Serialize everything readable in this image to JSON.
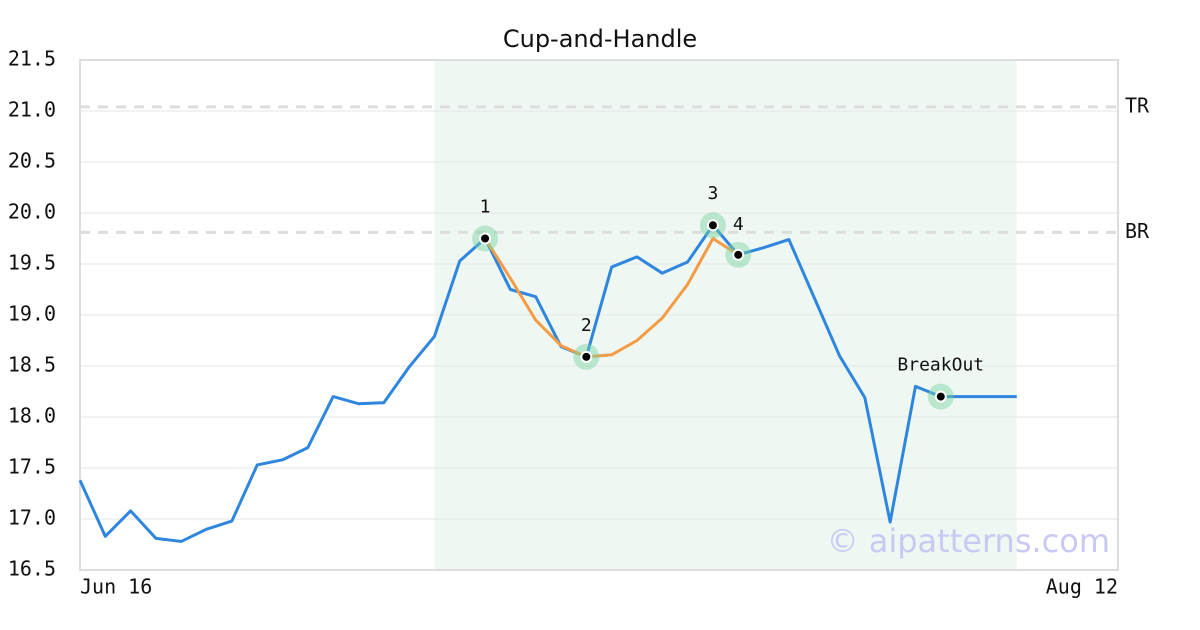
{
  "chart_data": {
    "type": "line",
    "title": "Cup-and-Handle",
    "categories": [
      "Jun 16",
      null,
      null,
      null,
      null,
      null,
      null,
      null,
      null,
      null,
      null,
      null,
      null,
      null,
      null,
      null,
      null,
      null,
      null,
      null,
      null,
      null,
      null,
      null,
      null,
      null,
      null,
      null,
      null,
      null,
      null,
      null,
      null,
      null,
      null,
      null,
      null,
      null,
      null,
      null,
      null,
      "Aug 12"
    ],
    "series": [
      {
        "color": "#2e86de",
        "values": [
          17.38,
          16.83,
          17.08,
          16.81,
          16.78,
          16.9,
          16.98,
          17.53,
          17.58,
          17.7,
          18.2,
          18.13,
          18.14,
          18.49,
          18.79,
          19.53,
          19.75,
          19.25,
          19.18,
          18.69,
          18.59,
          19.47,
          19.57,
          19.41,
          19.52,
          19.88,
          19.59,
          19.66,
          19.74,
          19.17,
          18.6,
          18.19,
          16.97,
          18.3,
          18.2,
          18.2,
          18.2,
          18.2,
          null,
          null,
          null,
          null
        ]
      },
      {
        "color": "#f39c45",
        "values": [
          null,
          null,
          null,
          null,
          null,
          null,
          null,
          null,
          null,
          null,
          null,
          null,
          null,
          null,
          null,
          null,
          19.75,
          19.36,
          18.95,
          18.7,
          18.59,
          18.61,
          18.75,
          18.97,
          19.3,
          19.75,
          19.59,
          null,
          null,
          null,
          null,
          null,
          null,
          null,
          null,
          null,
          null,
          null,
          null,
          null,
          null,
          null
        ]
      }
    ],
    "ylim": [
      16.5,
      21.5
    ],
    "yticks": [
      {
        "value": 16.5,
        "label": "16.5"
      },
      {
        "value": 17,
        "label": "17.0"
      },
      {
        "value": 17.5,
        "label": "17.5"
      },
      {
        "value": 18,
        "label": "18.0"
      },
      {
        "value": 18.5,
        "label": "18.5"
      },
      {
        "value": 19,
        "label": "19.0"
      },
      {
        "value": 19.5,
        "label": "19.5"
      },
      {
        "value": 20,
        "label": "20.0"
      },
      {
        "value": 20.5,
        "label": "20.5"
      },
      {
        "value": 21,
        "label": "21.0"
      },
      {
        "value": 21.5,
        "label": "21.5"
      }
    ],
    "grid": true,
    "reference_lines": [
      {
        "label": "TR",
        "value": 21.04
      },
      {
        "label": "BR",
        "value": 19.81
      }
    ],
    "highlight": [
      14,
      37
    ],
    "markers": [
      {
        "label": "1",
        "index": 16
      },
      {
        "label": "2",
        "index": 20
      },
      {
        "label": "3",
        "index": 25
      },
      {
        "label": "4",
        "index": 26
      },
      {
        "label": "BreakOut",
        "index": 34
      }
    ],
    "watermark": "© aipatterns.com"
  }
}
